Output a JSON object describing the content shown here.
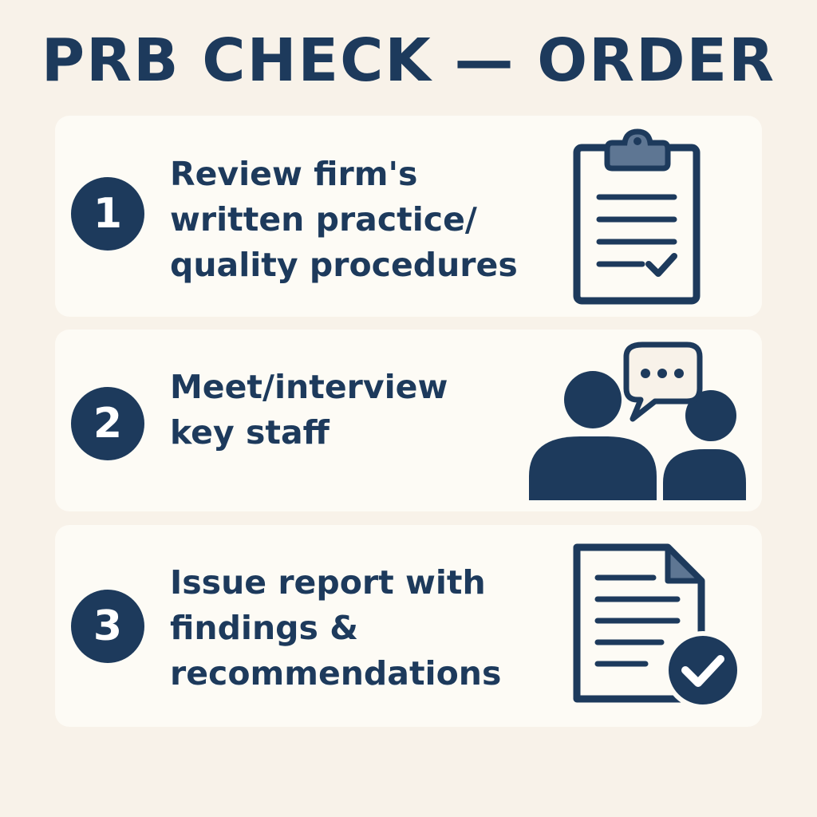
{
  "title": "PRB CHECK — ORDER",
  "colors": {
    "background": "#f8f2e9",
    "card": "#fdfbf5",
    "navy": "#1d3a5c",
    "clip_accent": "#5e7693"
  },
  "steps": [
    {
      "number": "1",
      "lines": [
        "Review firm's",
        "written practice/",
        "quality procedures"
      ],
      "icon": "clipboard-checklist-icon"
    },
    {
      "number": "2",
      "lines": [
        "Meet/interview",
        "key staff"
      ],
      "icon": "people-chat-icon"
    },
    {
      "number": "3",
      "lines": [
        "Issue report with",
        "findings &",
        "recommendations"
      ],
      "icon": "report-document-check-icon"
    }
  ]
}
